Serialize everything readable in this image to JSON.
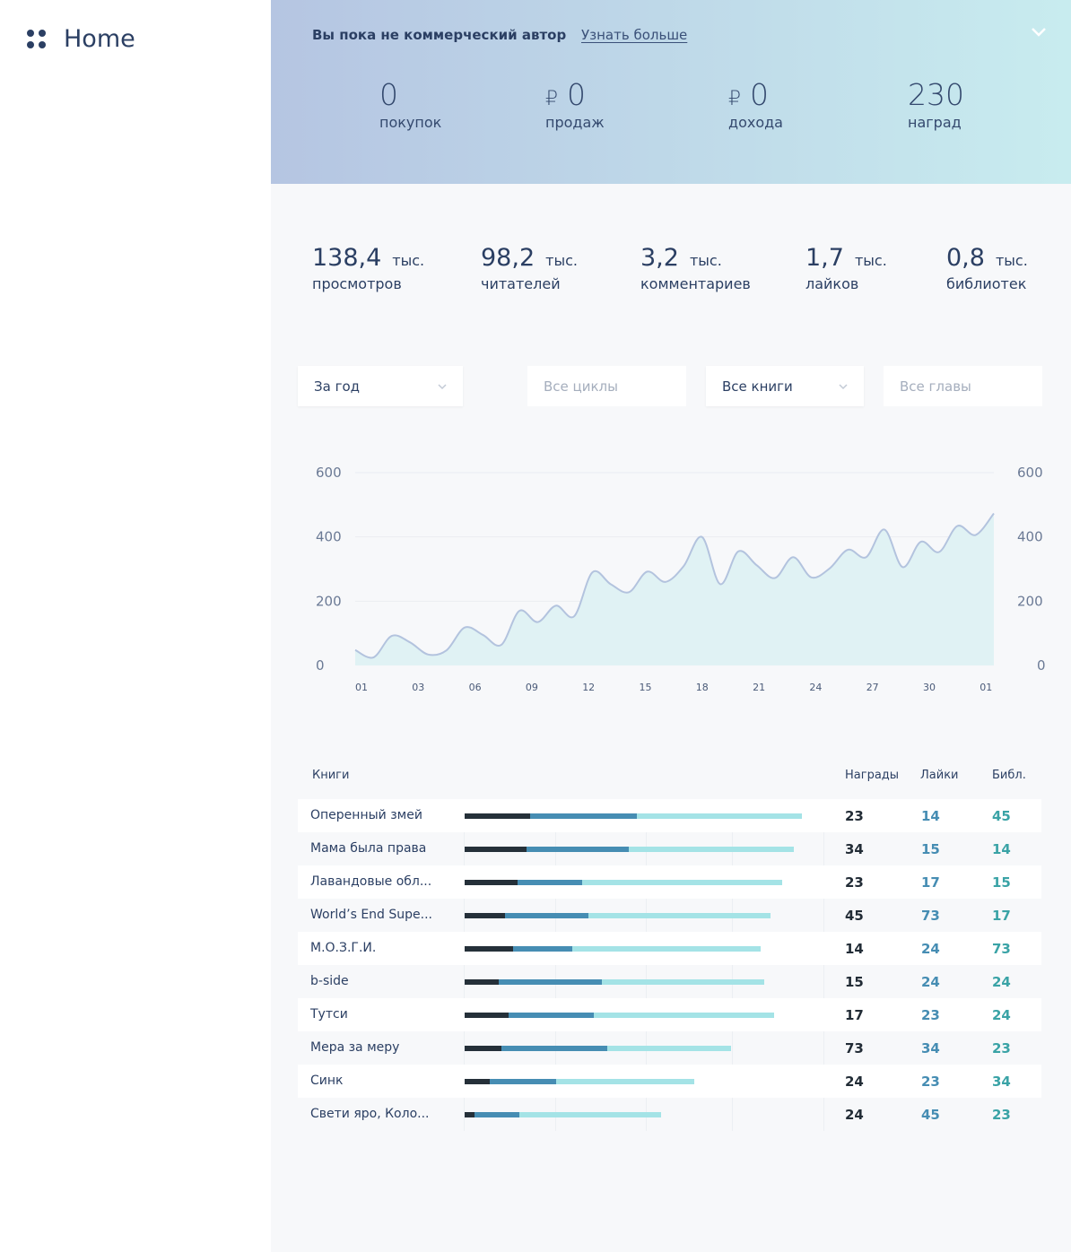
{
  "sidebar": {
    "title": "Home"
  },
  "header": {
    "notice": "Вы пока не коммерческий автор",
    "learn_more": "Узнать больше",
    "stats": [
      {
        "value": "0",
        "label": "покупок",
        "currency": ""
      },
      {
        "value": "0",
        "label": "продаж",
        "currency": "₽"
      },
      {
        "value": "0",
        "label": "дохода",
        "currency": "₽"
      },
      {
        "value": "230",
        "label": "наград",
        "currency": ""
      }
    ]
  },
  "stats": [
    {
      "value": "138,4",
      "unit": "тыс.",
      "label": "просмотров"
    },
    {
      "value": "98,2",
      "unit": "тыс.",
      "label": "читателей"
    },
    {
      "value": "3,2",
      "unit": "тыс.",
      "label": "комментариев"
    },
    {
      "value": "1,7",
      "unit": "тыс.",
      "label": "лайков"
    },
    {
      "value": "0,8",
      "unit": "тыс.",
      "label": "библиотек"
    }
  ],
  "filters": [
    {
      "value": "За год",
      "dropdown": true
    },
    {
      "placeholder": "Все циклы"
    },
    {
      "value": "Все книги",
      "dropdown": true
    },
    {
      "placeholder": "Все главы"
    }
  ],
  "chart_data": {
    "type": "area",
    "x_ticks": [
      "01",
      "03",
      "06",
      "09",
      "12",
      "15",
      "18",
      "21",
      "24",
      "27",
      "30",
      "01"
    ],
    "y_ticks": [
      0,
      200,
      400,
      600
    ],
    "ylim": [
      0,
      600
    ],
    "grid": true,
    "line_color": "#b3c3de",
    "fill_color": "#e0f2f4",
    "values": [
      48,
      25,
      92,
      72,
      34,
      47,
      118,
      95,
      64,
      170,
      135,
      186,
      153,
      290,
      253,
      228,
      292,
      260,
      309,
      400,
      253,
      355,
      312,
      272,
      337,
      274,
      302,
      360,
      337,
      423,
      306,
      385,
      353,
      434,
      406,
      473
    ]
  },
  "table": {
    "headers": {
      "books": "Книги",
      "awards": "Награды",
      "likes": "Лайки",
      "libs": "Библ."
    },
    "segment_colors": [
      "#253039",
      "#468db3",
      "#a4e3e6"
    ],
    "rows": [
      {
        "name": "Оперенный змей",
        "segments": [
          73,
          119,
          184
        ],
        "awards": "23",
        "likes": "14",
        "libs": "45"
      },
      {
        "name": "Мама была права",
        "segments": [
          69,
          114,
          184
        ],
        "awards": "34",
        "likes": "15",
        "libs": "14"
      },
      {
        "name": "Лавандовые обл...",
        "segments": [
          59,
          72,
          223
        ],
        "awards": "23",
        "likes": "17",
        "libs": "15"
      },
      {
        "name": "World’s End Supe...",
        "segments": [
          45,
          93,
          203
        ],
        "awards": "45",
        "likes": "73",
        "libs": "17"
      },
      {
        "name": "М.О.З.Г.И.",
        "segments": [
          54,
          66,
          210
        ],
        "awards": "14",
        "likes": "24",
        "libs": "73"
      },
      {
        "name": "b-side",
        "segments": [
          38,
          115,
          181
        ],
        "awards": "15",
        "likes": "24",
        "libs": "24"
      },
      {
        "name": "Тутси",
        "segments": [
          49,
          95,
          201
        ],
        "awards": "17",
        "likes": "23",
        "libs": "24"
      },
      {
        "name": "Мера за меру",
        "segments": [
          41,
          118,
          138
        ],
        "awards": "73",
        "likes": "34",
        "libs": "23"
      },
      {
        "name": "Синк",
        "segments": [
          28,
          74,
          154
        ],
        "awards": "24",
        "likes": "23",
        "libs": "34"
      },
      {
        "name": "Свети яро, Коло...",
        "segments": [
          11,
          50,
          158
        ],
        "awards": "24",
        "likes": "45",
        "libs": "23"
      }
    ]
  }
}
